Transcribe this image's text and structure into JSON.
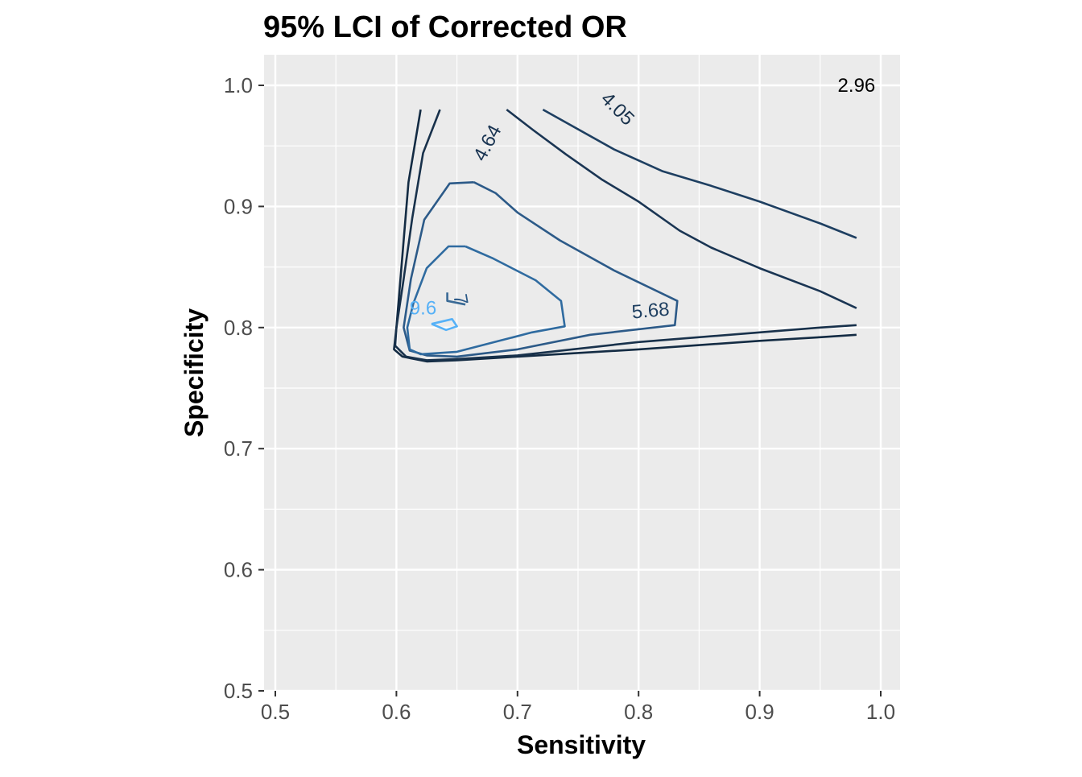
{
  "chart_data": {
    "type": "contour",
    "title": "95% LCI of Corrected OR",
    "xlabel": "Sensitivity",
    "ylabel": "Specificity",
    "xlim": [
      0.5,
      1.0
    ],
    "ylim": [
      0.5,
      1.0
    ],
    "x_ticks": [
      0.5,
      0.6,
      0.7,
      0.8,
      0.9,
      1.0
    ],
    "x_tick_labels": [
      "0.5",
      "0.6",
      "0.7",
      "0.8",
      "0.9",
      "1.0"
    ],
    "y_ticks": [
      0.5,
      0.6,
      0.7,
      0.8,
      0.9,
      1.0
    ],
    "y_tick_labels": [
      "0.5",
      "0.6",
      "0.7",
      "0.8",
      "0.9",
      "1.0"
    ],
    "grid": true,
    "panel_background": "#ebebeb",
    "legend": "none",
    "contours": [
      {
        "level": "2.96",
        "color": "#132b43",
        "points": [
          [
            0.62,
            0.98
          ],
          [
            0.61,
            0.92
          ],
          [
            0.605,
            0.86
          ],
          [
            0.6,
            0.8
          ],
          [
            0.598,
            0.782
          ],
          [
            0.605,
            0.776
          ],
          [
            0.625,
            0.772
          ],
          [
            0.65,
            0.773
          ],
          [
            0.7,
            0.776
          ],
          [
            0.8,
            0.782
          ],
          [
            0.9,
            0.789
          ],
          [
            0.95,
            0.792
          ],
          [
            0.98,
            0.794
          ]
        ],
        "label_x": 0.98,
        "label_y": 0.999,
        "label_color": "#000000"
      },
      {
        "level": "4.05",
        "color": "#18314b",
        "points": [
          [
            0.636,
            0.98
          ],
          [
            0.622,
            0.944
          ],
          [
            0.613,
            0.89
          ],
          [
            0.606,
            0.84
          ],
          [
            0.6,
            0.8
          ],
          [
            0.599,
            0.785
          ],
          [
            0.608,
            0.776
          ],
          [
            0.625,
            0.773
          ],
          [
            0.65,
            0.774
          ],
          [
            0.7,
            0.777
          ],
          [
            0.8,
            0.788
          ],
          [
            0.9,
            0.796
          ],
          [
            0.95,
            0.8
          ],
          [
            0.98,
            0.802
          ]
        ],
        "label_x": 0.782,
        "label_y": 0.98,
        "label_rotation": 45
      },
      {
        "level": "4.64",
        "color": "#1a3553",
        "points": [
          [
            0.691,
            0.98
          ],
          [
            0.713,
            0.963
          ],
          [
            0.74,
            0.943
          ],
          [
            0.77,
            0.922
          ],
          [
            0.8,
            0.904
          ],
          [
            0.834,
            0.88
          ],
          [
            0.86,
            0.866
          ],
          [
            0.9,
            0.849
          ],
          [
            0.95,
            0.83
          ],
          [
            0.98,
            0.816
          ]
        ],
        "label_x": 0.676,
        "label_y": 0.952,
        "label_rotation": -62
      },
      {
        "level": "5.68",
        "color": "#1e3f61",
        "points": [
          [
            0.721,
            0.98
          ],
          [
            0.78,
            0.947
          ],
          [
            0.82,
            0.929
          ],
          [
            0.86,
            0.917
          ],
          [
            0.9,
            0.904
          ],
          [
            0.95,
            0.886
          ],
          [
            0.98,
            0.874
          ]
        ],
        "label_x": 0.81,
        "label_y": 0.813,
        "label_rotation": -5
      },
      {
        "level": "7",
        "color": "#2c5a88",
        "points": [
          [
            0.664,
            0.92
          ],
          [
            0.644,
            0.919
          ],
          [
            0.623,
            0.889
          ],
          [
            0.612,
            0.84
          ],
          [
            0.606,
            0.8
          ],
          [
            0.611,
            0.781
          ],
          [
            0.625,
            0.777
          ],
          [
            0.65,
            0.776
          ],
          [
            0.7,
            0.782
          ],
          [
            0.76,
            0.794
          ],
          [
            0.83,
            0.802
          ],
          [
            0.832,
            0.822
          ],
          [
            0.78,
            0.847
          ],
          [
            0.735,
            0.872
          ],
          [
            0.7,
            0.895
          ],
          [
            0.682,
            0.911
          ],
          [
            0.664,
            0.92
          ]
        ],
        "label_x": 0.652,
        "label_y": 0.823,
        "label_rotation": 80
      },
      {
        "level": "9.6",
        "color": "#56b1f7",
        "points": [
          [
            0.629,
            0.803
          ],
          [
            0.646,
            0.807
          ],
          [
            0.65,
            0.801
          ],
          [
            0.641,
            0.798
          ],
          [
            0.629,
            0.803
          ]
        ],
        "label_x": 0.622,
        "label_y": 0.815
      },
      {
        "level": "",
        "color": "#2f6ba0",
        "points": [
          [
            0.657,
            0.867
          ],
          [
            0.643,
            0.867
          ],
          [
            0.625,
            0.849
          ],
          [
            0.614,
            0.82
          ],
          [
            0.609,
            0.8
          ],
          [
            0.611,
            0.782
          ],
          [
            0.62,
            0.778
          ],
          [
            0.65,
            0.78
          ],
          [
            0.685,
            0.789
          ],
          [
            0.712,
            0.796
          ],
          [
            0.739,
            0.801
          ],
          [
            0.736,
            0.822
          ],
          [
            0.715,
            0.839
          ],
          [
            0.68,
            0.857
          ],
          [
            0.657,
            0.867
          ]
        ]
      },
      {
        "level": "",
        "color": "#3a6a96",
        "points": [
          [
            0.642,
            0.829
          ],
          [
            0.642,
            0.822
          ],
          [
            0.657,
            0.819
          ]
        ]
      }
    ]
  }
}
